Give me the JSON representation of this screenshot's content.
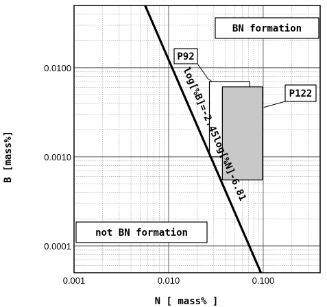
{
  "chart_data": {
    "type": "scatter",
    "x_scale": "log",
    "y_scale": "log",
    "xlim": [
      0.001,
      0.4
    ],
    "ylim": [
      5e-05,
      0.05
    ],
    "x_ticks": [
      {
        "value": 0.001,
        "label": "0.001"
      },
      {
        "value": 0.01,
        "label": "0.010"
      },
      {
        "value": 0.1,
        "label": "0.100"
      }
    ],
    "y_ticks": [
      {
        "value": 0.0001,
        "label": "0.0001"
      },
      {
        "value": 0.001,
        "label": "0.0010"
      },
      {
        "value": 0.01,
        "label": "0.0100"
      }
    ],
    "xlabel": "N  [ mass% ]",
    "ylabel": "B [mass%]",
    "grid": true,
    "boundary_line": {
      "label": "log[%B]=-2.45log[%N]-6.81",
      "slope": -2.45,
      "intercept": -6.81
    },
    "regions": [
      {
        "name": "P92",
        "label": "P92",
        "x_min": 0.027,
        "x_max": 0.072,
        "y_min": 0.001,
        "y_max": 0.007,
        "fill": "#ffffff"
      },
      {
        "name": "P122",
        "label": "P122",
        "x_min": 0.037,
        "x_max": 0.098,
        "y_min": 0.00055,
        "y_max": 0.0061,
        "fill": "#c8c8c8"
      }
    ],
    "annotations": [
      {
        "name": "bn-formation",
        "text": "BN formation"
      },
      {
        "name": "not-bn-formation",
        "text": "not BN formation"
      }
    ]
  }
}
